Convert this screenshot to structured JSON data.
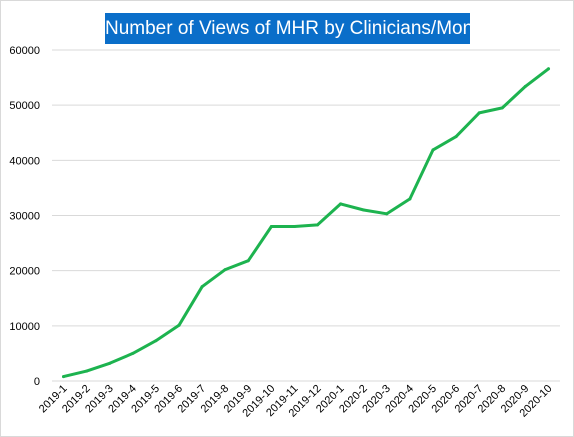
{
  "chart_data": {
    "type": "line",
    "title": "Number of Views of  MHR by Clinicians/Month",
    "xlabel": "",
    "ylabel": "",
    "categories": [
      "2019-1",
      "2019-2",
      "2019-3",
      "2019-4",
      "2019-5",
      "2019-6",
      "2019-7",
      "2019-8",
      "2019-9",
      "2019-10",
      "2019-11",
      "2019-12",
      "2020-1",
      "2020-2",
      "2020-3",
      "2020-4",
      "2020-5",
      "2020-6",
      "2020-7",
      "2020-8",
      "2020-9",
      "2020-10"
    ],
    "values": [
      800,
      1800,
      3200,
      5000,
      7300,
      10100,
      17100,
      20200,
      21800,
      28000,
      28000,
      28300,
      32100,
      31000,
      30300,
      33000,
      41900,
      44300,
      48600,
      49500,
      53400,
      56600
    ],
    "ylim": [
      0,
      60000
    ],
    "yticks": [
      "0",
      "10000",
      "20000",
      "30000",
      "40000",
      "50000",
      "60000"
    ],
    "grid": true,
    "legend": "none",
    "colors": {
      "line": "#1db34f",
      "grid": "#d9d9d9",
      "title_bg": "#0a6ec9",
      "title_text": "#ffffff"
    }
  }
}
